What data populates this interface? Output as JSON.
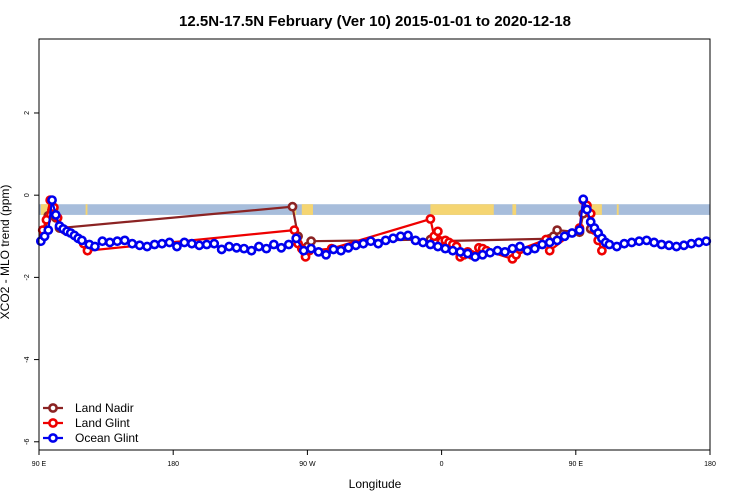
{
  "chart_data": {
    "type": "line",
    "title": "12.5N-17.5N February (Ver 10)   2015-01-01 to 2020-12-18",
    "xlabel": "Longitude",
    "ylabel": "XCO2 - MLO trend (ppm)",
    "xlim": [
      90,
      450
    ],
    "ylim": [
      -6.2,
      3.8
    ],
    "x_ticks": [
      {
        "value": 90,
        "label": "90 E"
      },
      {
        "value": 162,
        "label": "180"
      },
      {
        "value": 234,
        "label": "90 W"
      },
      {
        "value": 306,
        "label": "0"
      },
      {
        "value": 378,
        "label": "90 E"
      },
      {
        "value": 450,
        "label": "180"
      }
    ],
    "y_ticks": [
      {
        "value": -6,
        "label": "-6"
      },
      {
        "value": -4,
        "label": "-4"
      },
      {
        "value": -2,
        "label": "-2"
      },
      {
        "value": 0,
        "label": "0"
      },
      {
        "value": 2,
        "label": "2"
      }
    ],
    "grid": false,
    "legend_position": "bottom-left",
    "band": {
      "y_top": -0.22,
      "y_bottom": -0.48,
      "ocean_color": "#a7bddb",
      "land_color": "#f5d572",
      "land_segments": [
        [
          91,
          97
        ],
        [
          115,
          116
        ],
        [
          226,
          228
        ],
        [
          231,
          237
        ],
        [
          300,
          334
        ],
        [
          344,
          346
        ],
        [
          385,
          392
        ],
        [
          400,
          401
        ]
      ]
    },
    "series": [
      {
        "name": "Land Nadir",
        "color": "#8b2323",
        "x": [
          92.5,
          95,
          97,
          99,
          101,
          226,
          229,
          232,
          234,
          236,
          300,
          302,
          364,
          366,
          368,
          380,
          382,
          384,
          386
        ],
        "y": [
          -1.0,
          -0.5,
          -0.35,
          -0.55,
          -0.8,
          -0.28,
          -1.0,
          -1.32,
          -1.25,
          -1.12,
          -1.08,
          -1.12,
          -1.06,
          -1.0,
          -0.85,
          -0.9,
          -0.45,
          -0.35,
          -0.82
        ]
      },
      {
        "name": "Land Glint",
        "color": "#ee0000",
        "x": [
          92,
          94,
          96,
          98,
          100,
          104,
          114,
          116,
          227,
          229,
          231,
          233,
          235,
          247,
          300,
          302,
          304,
          306,
          308,
          310,
          312,
          314,
          316,
          318,
          320,
          322,
          324,
          326,
          328,
          330,
          344,
          346,
          348,
          362,
          364,
          380,
          382,
          384,
          386,
          388,
          390,
          392
        ],
        "y": [
          -0.85,
          -0.6,
          -0.12,
          -0.3,
          -0.55,
          -0.85,
          -1.18,
          -1.35,
          -0.85,
          -1.18,
          -1.3,
          -1.5,
          -1.35,
          -1.3,
          -0.58,
          -1.0,
          -0.88,
          -1.12,
          -1.1,
          -1.15,
          -1.2,
          -1.25,
          -1.5,
          -1.45,
          -1.38,
          -1.45,
          -1.48,
          -1.28,
          -1.3,
          -1.35,
          -1.55,
          -1.45,
          -1.32,
          -1.08,
          -1.35,
          -0.8,
          -0.12,
          -0.25,
          -0.45,
          -0.85,
          -1.1,
          -1.35
        ]
      },
      {
        "name": "Ocean Glint",
        "color": "#0000ee",
        "x": [
          91,
          93,
          95,
          97,
          99,
          101,
          103,
          105,
          107,
          109,
          111,
          113,
          117,
          120,
          124,
          128,
          132,
          136,
          140,
          144,
          148,
          152,
          156,
          160,
          164,
          168,
          172,
          176,
          180,
          184,
          188,
          192,
          196,
          200,
          204,
          208,
          212,
          216,
          220,
          224,
          228,
          232,
          236,
          240,
          244,
          248,
          252,
          256,
          260,
          264,
          268,
          272,
          276,
          280,
          284,
          288,
          292,
          296,
          300,
          304,
          308,
          312,
          316,
          320,
          324,
          328,
          332,
          336,
          340,
          344,
          348,
          352,
          356,
          360,
          364,
          368,
          372,
          376,
          380,
          382,
          384,
          386,
          388,
          390,
          392,
          394,
          396,
          400,
          404,
          408,
          412,
          416,
          420,
          424,
          428,
          432,
          436,
          440,
          444,
          448
        ],
        "y": [
          -1.12,
          -1.0,
          -0.85,
          -0.12,
          -0.48,
          -0.75,
          -0.82,
          -0.88,
          -0.92,
          -0.98,
          -1.05,
          -1.1,
          -1.2,
          -1.25,
          -1.12,
          -1.15,
          -1.12,
          -1.1,
          -1.18,
          -1.22,
          -1.25,
          -1.2,
          -1.18,
          -1.15,
          -1.25,
          -1.15,
          -1.18,
          -1.22,
          -1.2,
          -1.18,
          -1.32,
          -1.25,
          -1.28,
          -1.3,
          -1.35,
          -1.25,
          -1.3,
          -1.2,
          -1.28,
          -1.2,
          -1.05,
          -1.35,
          -1.3,
          -1.38,
          -1.45,
          -1.32,
          -1.35,
          -1.28,
          -1.22,
          -1.18,
          -1.12,
          -1.18,
          -1.1,
          -1.05,
          -1.0,
          -0.98,
          -1.1,
          -1.15,
          -1.2,
          -1.25,
          -1.3,
          -1.35,
          -1.38,
          -1.42,
          -1.5,
          -1.45,
          -1.4,
          -1.35,
          -1.38,
          -1.3,
          -1.25,
          -1.35,
          -1.3,
          -1.2,
          -1.15,
          -1.1,
          -1.0,
          -0.92,
          -0.85,
          -0.1,
          -0.35,
          -0.65,
          -0.8,
          -0.92,
          -1.05,
          -1.15,
          -1.2,
          -1.25,
          -1.18,
          -1.15,
          -1.12,
          -1.1,
          -1.15,
          -1.2,
          -1.22,
          -1.25,
          -1.22,
          -1.18,
          -1.15,
          -1.12
        ]
      }
    ]
  }
}
